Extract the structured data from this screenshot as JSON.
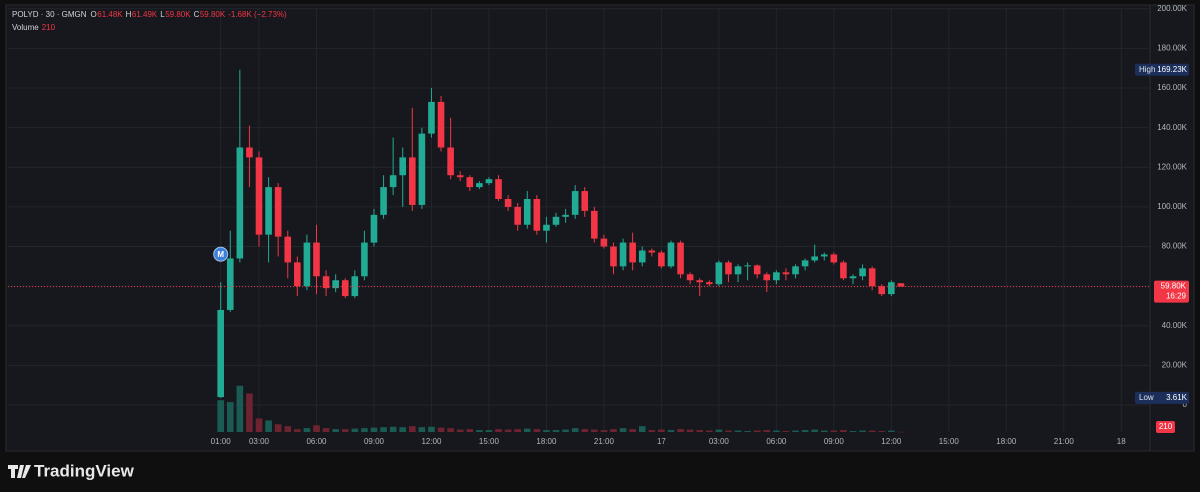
{
  "chart_data": {
    "type": "candlestick",
    "title": "POLYD · 30 · GMGN",
    "ohlc_legend": {
      "keys": [
        "O",
        "H",
        "L",
        "C"
      ],
      "values": [
        "61.48K",
        "61.49K",
        "59.80K",
        "59.80K"
      ],
      "change": "-1.68K (−2.73%)"
    },
    "volume_name": "Volume",
    "x": [
      1,
      1.5,
      2,
      2.5,
      3,
      3.5,
      4,
      4.5,
      5,
      5.5,
      6,
      6.5,
      7,
      7.5,
      8,
      8.5,
      9,
      9.5,
      10,
      10.5,
      11,
      11.5,
      12,
      12.5,
      13,
      13.5,
      14,
      14.5,
      15,
      15.5,
      16,
      16.5,
      17,
      17.5,
      18,
      18.5,
      19,
      19.5,
      20,
      20.5,
      21,
      21.5,
      22,
      22.5,
      23,
      23.5,
      24,
      24.5,
      25,
      25.5,
      26,
      26.5,
      27,
      27.5,
      28,
      28.5,
      29,
      29.5,
      30,
      30.5,
      31,
      31.5,
      32,
      32.5,
      33,
      33.5,
      34,
      34.5,
      35,
      35.5,
      36,
      36.5
    ],
    "open": [
      4000,
      48000,
      74000,
      130000,
      125000,
      86000,
      110000,
      85000,
      72000,
      60000,
      82000,
      65000,
      59000,
      63000,
      55000,
      65000,
      82000,
      96000,
      110000,
      116000,
      125000,
      101000,
      137000,
      153000,
      130000,
      116000,
      115000,
      110000,
      112000,
      114000,
      104000,
      100000,
      91000,
      104000,
      88000,
      91000,
      95000,
      96000,
      108000,
      98000,
      84000,
      80000,
      70000,
      82000,
      72000,
      78000,
      77000,
      70000,
      82000,
      66000,
      63000,
      62000,
      61000,
      72000,
      66000,
      70000,
      70500,
      66000,
      63000,
      67000,
      66000,
      70000,
      73000,
      75000,
      76000,
      72000,
      64000,
      65000,
      69000,
      60000,
      56000,
      61480
    ],
    "high": [
      62000,
      88000,
      169230,
      141000,
      128000,
      115000,
      112000,
      88000,
      75000,
      86000,
      91000,
      68000,
      66000,
      64000,
      68000,
      88000,
      99000,
      116000,
      135000,
      130000,
      150000,
      140000,
      160000,
      156000,
      145000,
      118000,
      116000,
      113000,
      115000,
      116000,
      106000,
      102000,
      108000,
      106000,
      95000,
      97000,
      99000,
      111000,
      110000,
      100000,
      86000,
      82000,
      84000,
      87000,
      80000,
      79000,
      78000,
      83000,
      83000,
      67000,
      64000,
      63000,
      73000,
      73000,
      71000,
      72000,
      71000,
      67000,
      68000,
      69000,
      71000,
      74000,
      81000,
      77000,
      77000,
      73000,
      66000,
      71000,
      70000,
      61000,
      63000,
      61490
    ],
    "low": [
      3610,
      47000,
      72000,
      110000,
      80000,
      72000,
      75000,
      64000,
      55000,
      58000,
      56000,
      55000,
      57000,
      54000,
      54000,
      63000,
      80000,
      94000,
      106000,
      100000,
      98000,
      99000,
      135000,
      128000,
      114000,
      113000,
      108000,
      109000,
      111000,
      103000,
      98000,
      88000,
      89000,
      86000,
      82000,
      90000,
      92000,
      94000,
      95000,
      82000,
      79000,
      66000,
      68000,
      68000,
      70000,
      75000,
      69000,
      69000,
      64000,
      61000,
      55000,
      60000,
      60000,
      62000,
      62000,
      63000,
      64000,
      57000,
      61000,
      63000,
      64000,
      68000,
      72000,
      73000,
      71000,
      63000,
      61000,
      63000,
      58000,
      55000,
      55000,
      59800
    ],
    "close": [
      48000,
      74000,
      130000,
      125000,
      86000,
      110000,
      85000,
      72000,
      60000,
      82000,
      65000,
      59000,
      63000,
      55000,
      65000,
      82000,
      96000,
      110000,
      116000,
      125000,
      101000,
      137000,
      153000,
      130000,
      116000,
      115000,
      110000,
      112000,
      114000,
      104000,
      100000,
      91000,
      104000,
      88000,
      91000,
      95000,
      96000,
      108000,
      98000,
      84000,
      80000,
      70000,
      82000,
      72000,
      78000,
      77000,
      70000,
      82000,
      66000,
      63000,
      62000,
      61000,
      72000,
      66000,
      70000,
      70500,
      66000,
      63000,
      67000,
      66000,
      70000,
      73000,
      75000,
      76000,
      72000,
      64000,
      65000,
      69000,
      60000,
      56000,
      62000,
      59800
    ],
    "volume": [
      33000,
      31000,
      48000,
      40000,
      14000,
      12000,
      8000,
      6000,
      3000,
      4000,
      7000,
      4000,
      3000,
      3000,
      3500,
      4000,
      4500,
      5000,
      5500,
      5000,
      6000,
      5000,
      5500,
      4500,
      4000,
      2500,
      3000,
      2000,
      2000,
      3000,
      2500,
      3000,
      3500,
      3000,
      2000,
      2000,
      2500,
      4000,
      3000,
      2500,
      2000,
      3000,
      4000,
      3000,
      6000,
      2000,
      2500,
      2000,
      3000,
      2500,
      2000,
      1500,
      2500,
      1500,
      1500,
      1000,
      1500,
      2000,
      1500,
      1000,
      1500,
      2000,
      2500,
      1500,
      1500,
      2000,
      1000,
      1500,
      1500,
      1000,
      1500,
      210
    ],
    "volume_lim": [
      0,
      440000
    ],
    "up_color": "#22ab94",
    "down_color": "#f23645",
    "volume_up_color": "#1a5c53",
    "volume_down_color": "#6e2430",
    "xlim": [
      -10.1,
      49.5
    ],
    "xticks": [
      {
        "value": 1,
        "label": "01:00"
      },
      {
        "value": 3,
        "label": "03:00"
      },
      {
        "value": 6,
        "label": "06:00"
      },
      {
        "value": 9,
        "label": "09:00"
      },
      {
        "value": 12,
        "label": "12:00"
      },
      {
        "value": 15,
        "label": "15:00"
      },
      {
        "value": 18,
        "label": "18:00"
      },
      {
        "value": 21,
        "label": "21:00"
      },
      {
        "value": 24,
        "label": "17"
      },
      {
        "value": 27,
        "label": "03:00"
      },
      {
        "value": 30,
        "label": "06:00"
      },
      {
        "value": 33,
        "label": "09:00"
      },
      {
        "value": 36,
        "label": "12:00"
      },
      {
        "value": 39,
        "label": "15:00"
      },
      {
        "value": 42,
        "label": "18:00"
      },
      {
        "value": 45,
        "label": "21:00"
      },
      {
        "value": 48,
        "label": "18"
      }
    ],
    "ylim": [
      -13600,
      200400
    ],
    "yticks": [
      0,
      {
        "value": 20000,
        "label": "20.00K"
      },
      {
        "value": 40000,
        "label": "40.00K"
      },
      {
        "value": 60000,
        "label": "60.00K"
      },
      {
        "value": 80000,
        "label": "80.00K"
      },
      {
        "value": 100000,
        "label": "100.00K"
      },
      {
        "value": 120000,
        "label": "120.00K"
      },
      {
        "value": 140000,
        "label": "140.00K"
      },
      {
        "value": 160000,
        "label": "160.00K"
      },
      {
        "value": 180000,
        "label": "180.00K"
      },
      {
        "value": 200000,
        "label": "200.00K"
      }
    ],
    "grid": true,
    "markers": [
      {
        "x": 1,
        "text": "M"
      }
    ],
    "high_label": {
      "label": "High",
      "value": 169230,
      "value_label": "169.23K"
    },
    "low_label": {
      "label": "Low",
      "value": 3610,
      "value_label": "3.61K"
    },
    "current_price": {
      "value": 59800,
      "value_label": "59.80K",
      "countdown": "16:29"
    }
  },
  "branding": "TradingView"
}
